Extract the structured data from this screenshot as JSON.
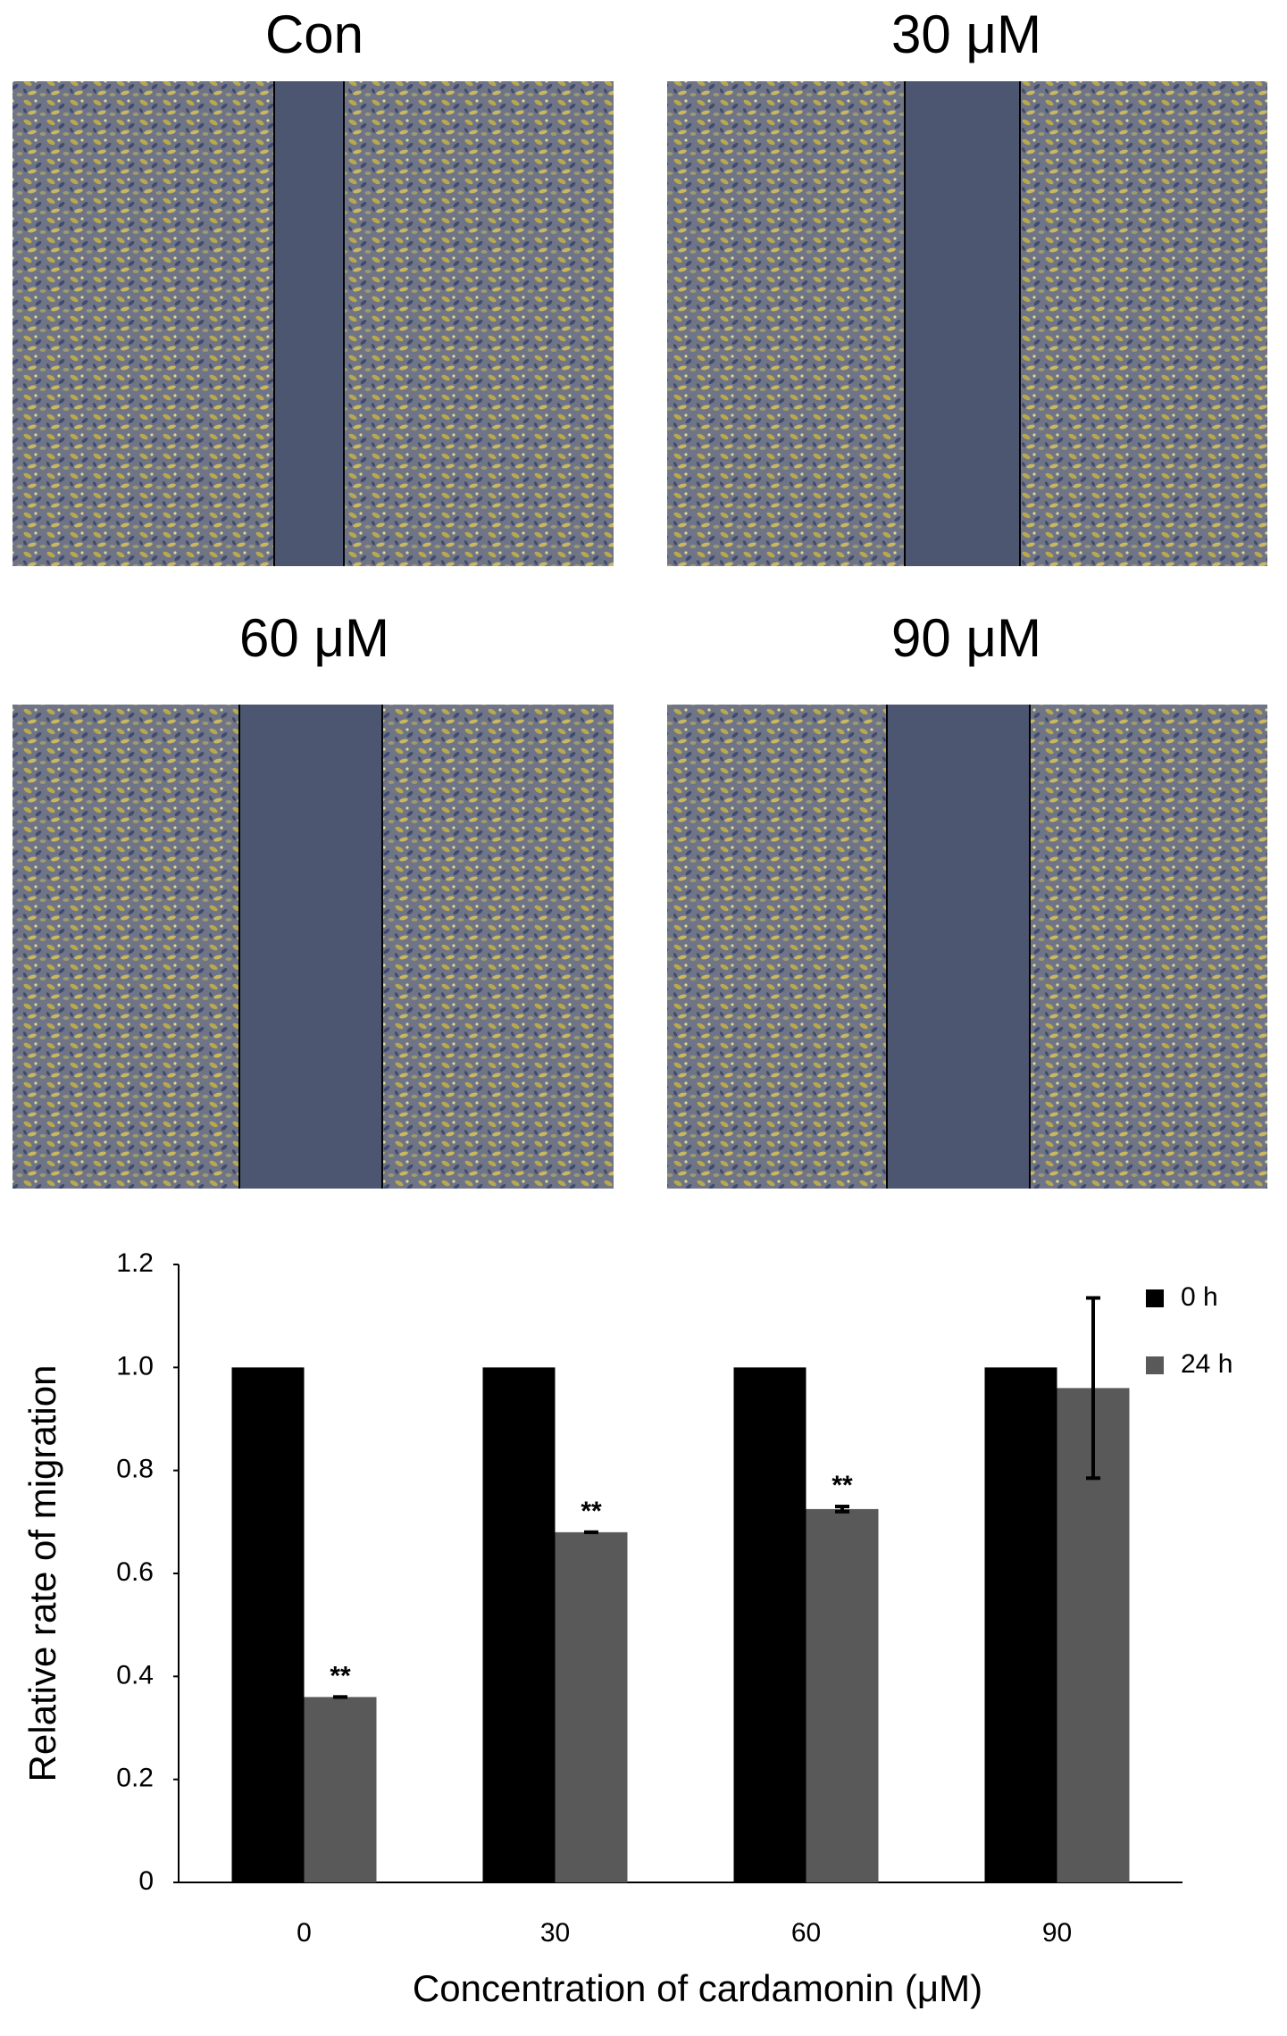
{
  "images": [
    {
      "title": "Con"
    },
    {
      "title": "30 μM"
    },
    {
      "title": "60 μM"
    },
    {
      "title": "90 μM"
    }
  ],
  "chart_data": {
    "type": "bar",
    "x_label": "Concentration of cardamonin (μM)",
    "y_label": "Relative rate of migration",
    "categories": [
      "0",
      "30",
      "60",
      "90"
    ],
    "series": [
      {
        "name": "0 h",
        "color": "#000000",
        "values": [
          1,
          1,
          1,
          1
        ]
      },
      {
        "name": "24 h",
        "color": "#595959",
        "values": [
          0.36,
          0.68,
          0.725,
          0.96
        ],
        "errors": [
          0,
          0,
          0.005,
          0.175
        ]
      }
    ],
    "annotations": [
      {
        "text": "**",
        "x": "0"
      },
      {
        "text": "**",
        "x": "30"
      },
      {
        "text": "**",
        "x": "60"
      }
    ],
    "ylim": [
      0,
      1.2
    ],
    "yticks": [
      0,
      0.2,
      0.4,
      0.6,
      0.8,
      {
        "value": 1,
        "label": "1.0"
      },
      1.2
    ],
    "grid": false,
    "legend": "upper right"
  }
}
